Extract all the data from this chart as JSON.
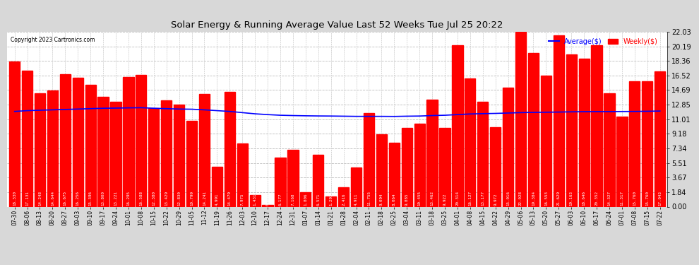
{
  "title": "Solar Energy & Running Average Value Last 52 Weeks Tue Jul 25 20:22",
  "copyright": "Copyright 2023 Cartronics.com",
  "bar_color": "#ff0000",
  "avg_line_color": "#0000ff",
  "background_color": "#d8d8d8",
  "plot_bg_color": "#ffffff",
  "grid_color": "#bbbbbb",
  "yticks": [
    0.0,
    1.84,
    3.67,
    5.51,
    7.34,
    9.18,
    11.01,
    12.85,
    14.69,
    16.52,
    18.36,
    20.19,
    22.03
  ],
  "categories": [
    "07-30",
    "08-06",
    "08-13",
    "08-20",
    "08-27",
    "09-03",
    "09-10",
    "09-17",
    "09-24",
    "10-01",
    "10-08",
    "10-15",
    "10-22",
    "10-29",
    "11-05",
    "11-12",
    "11-19",
    "11-26",
    "12-03",
    "12-10",
    "12-17",
    "12-24",
    "12-31",
    "01-07",
    "01-14",
    "01-21",
    "01-28",
    "02-04",
    "02-11",
    "02-18",
    "02-25",
    "03-04",
    "03-11",
    "03-18",
    "03-25",
    "04-01",
    "04-08",
    "04-15",
    "04-22",
    "04-29",
    "05-06",
    "05-13",
    "05-20",
    "05-27",
    "06-03",
    "06-10",
    "06-17",
    "06-24",
    "07-01",
    "07-08",
    "07-15",
    "07-22"
  ],
  "values": [
    18.33,
    17.131,
    14.248,
    14.644,
    16.675,
    16.256,
    15.396,
    13.8,
    13.221,
    16.295,
    16.588,
    12.38,
    13.429,
    12.83,
    10.799,
    14.241,
    4.991,
    14.479,
    7.975,
    1.431,
    0.243,
    6.177,
    7.168,
    1.806,
    6.571,
    1.293,
    2.416,
    4.911,
    11.755,
    9.094,
    8.064,
    9.885,
    10.455,
    13.462,
    9.922,
    20.314,
    16.127,
    13.177,
    9.972,
    15.016,
    22.028,
    19.384,
    16.553,
    21.629,
    19.163,
    18.646,
    20.352,
    14.327,
    11.317,
    15.76,
    15.76,
    17.043
  ],
  "avg_values": [
    12.0,
    12.1,
    12.15,
    12.2,
    12.25,
    12.3,
    12.35,
    12.4,
    12.42,
    12.45,
    12.47,
    12.4,
    12.35,
    12.3,
    12.28,
    12.2,
    12.1,
    12.0,
    11.85,
    11.7,
    11.6,
    11.52,
    11.48,
    11.45,
    11.43,
    11.42,
    11.4,
    11.38,
    11.38,
    11.38,
    11.37,
    11.4,
    11.42,
    11.48,
    11.52,
    11.6,
    11.68,
    11.72,
    11.75,
    11.8,
    11.85,
    11.88,
    11.9,
    11.92,
    11.95,
    11.97,
    11.98,
    11.98,
    11.99,
    12.0,
    12.02,
    12.05
  ],
  "legend_avg_label": "Average($)",
  "legend_weekly_label": "Weekly($)"
}
